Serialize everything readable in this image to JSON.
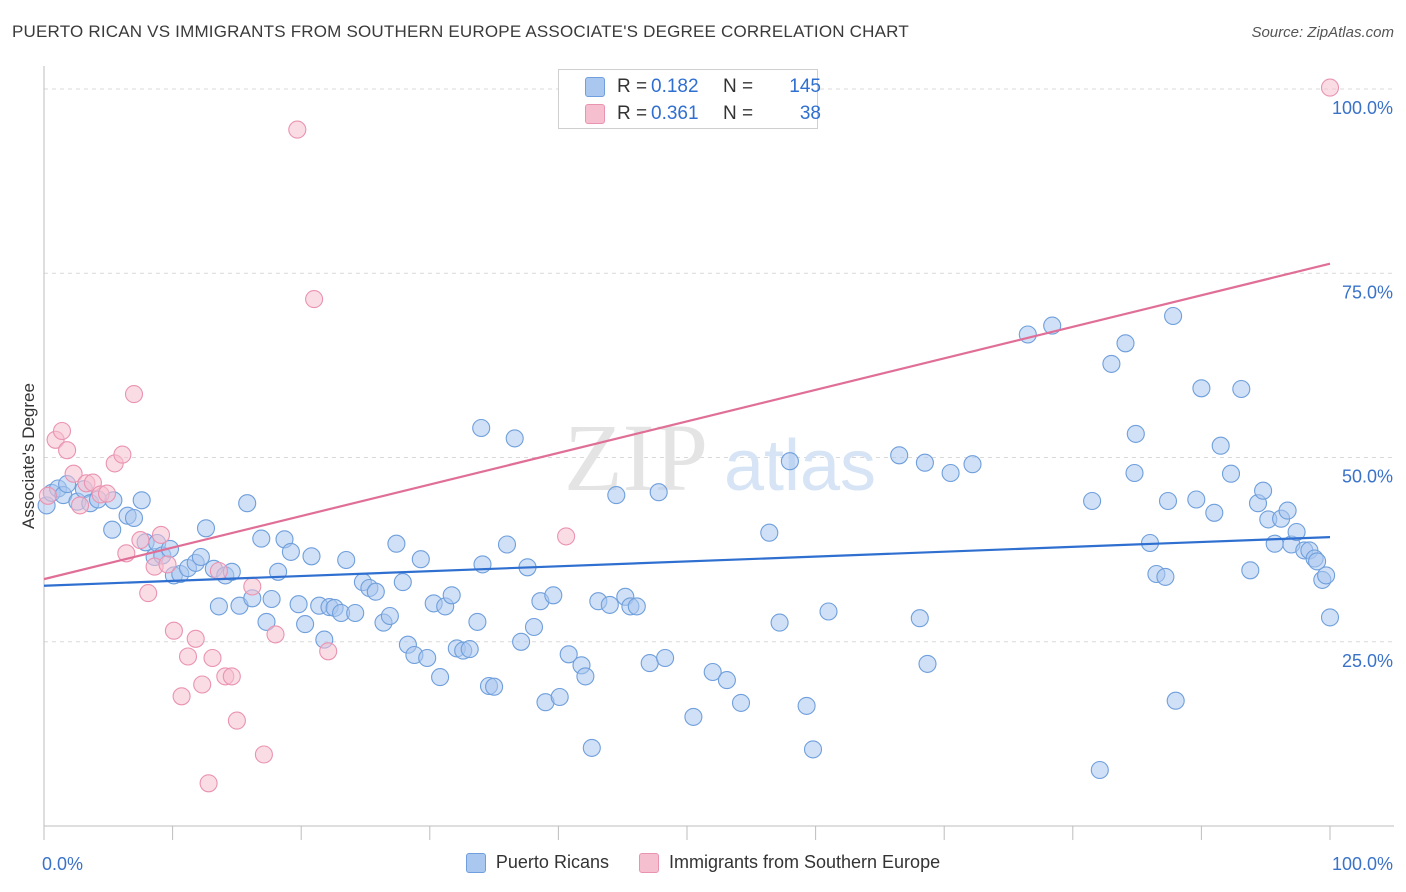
{
  "header": {
    "title": "PUERTO RICAN VS IMMIGRANTS FROM SOUTHERN EUROPE ASSOCIATE'S DEGREE CORRELATION CHART",
    "source": "Source: ZipAtlas.com"
  },
  "watermark": {
    "zip": "ZIP",
    "atlas": "atlas"
  },
  "colors": {
    "blue_fill": "#a9c7ef",
    "blue_stroke": "#6f9fdc",
    "blue_line": "#2f6fd0",
    "pink_fill": "#f6bfd0",
    "pink_stroke": "#ea93b1",
    "pink_line": "#e06f97",
    "tick_text": "#3a72c8",
    "grid": "#d9d9d9"
  },
  "stats": [
    {
      "r_label": "R =",
      "r_value": "0.182",
      "n_label": "N =",
      "n_value": "145"
    },
    {
      "r_label": "R =",
      "r_value": "0.361",
      "n_label": "N =",
      "n_value": "38"
    }
  ],
  "chart_data": {
    "type": "scatter",
    "title": "PUERTO RICAN VS IMMIGRANTS FROM SOUTHERN EUROPE ASSOCIATE'S DEGREE CORRELATION CHART",
    "xlabel": "",
    "ylabel": "Associate's Degree",
    "xlim": [
      0,
      100
    ],
    "ylim": [
      0,
      101.5
    ],
    "x_tick_labels": [
      {
        "value": 0,
        "label": "0.0%"
      },
      {
        "value": 100,
        "label": "100.0%"
      }
    ],
    "y_tick_labels": [
      {
        "value": 25,
        "label": "25.0%"
      },
      {
        "value": 50,
        "label": "50.0%"
      },
      {
        "value": 75,
        "label": "75.0%"
      },
      {
        "value": 100,
        "label": "100.0%"
      }
    ],
    "x_minor_ticks": [
      0,
      10,
      20,
      30,
      40,
      50,
      60,
      70,
      80,
      90,
      100
    ],
    "grid": true,
    "legend_position": "bottom",
    "series": [
      {
        "name": "Puerto Ricans",
        "color": "blue",
        "trend": {
          "x": [
            0,
            100
          ],
          "y": [
            32.6,
            39.2
          ]
        },
        "points": [
          [
            0.2,
            43.5
          ],
          [
            0.6,
            45.2
          ],
          [
            1.1,
            45.8
          ],
          [
            1.5,
            44.9
          ],
          [
            1.8,
            46.4
          ],
          [
            2.6,
            44.0
          ],
          [
            3.1,
            45.7
          ],
          [
            3.6,
            43.8
          ],
          [
            4.2,
            44.3
          ],
          [
            5.4,
            44.2
          ],
          [
            5.3,
            40.2
          ],
          [
            6.5,
            42.1
          ],
          [
            7.0,
            41.8
          ],
          [
            7.6,
            44.2
          ],
          [
            7.9,
            38.5
          ],
          [
            8.6,
            36.5
          ],
          [
            8.8,
            38.4
          ],
          [
            9.2,
            36.7
          ],
          [
            9.8,
            37.6
          ],
          [
            10.1,
            34.0
          ],
          [
            10.6,
            34.2
          ],
          [
            11.2,
            35.0
          ],
          [
            11.8,
            35.7
          ],
          [
            12.2,
            36.5
          ],
          [
            12.6,
            40.4
          ],
          [
            13.2,
            34.9
          ],
          [
            13.6,
            29.8
          ],
          [
            14.1,
            34.0
          ],
          [
            14.6,
            34.5
          ],
          [
            15.2,
            29.9
          ],
          [
            15.8,
            43.8
          ],
          [
            16.2,
            30.9
          ],
          [
            16.9,
            39.0
          ],
          [
            17.3,
            27.7
          ],
          [
            17.7,
            30.8
          ],
          [
            18.2,
            34.5
          ],
          [
            18.7,
            38.9
          ],
          [
            19.2,
            37.2
          ],
          [
            19.8,
            30.1
          ],
          [
            20.3,
            27.4
          ],
          [
            20.8,
            36.6
          ],
          [
            21.4,
            29.9
          ],
          [
            21.8,
            25.3
          ],
          [
            22.2,
            29.7
          ],
          [
            22.6,
            29.6
          ],
          [
            23.1,
            28.9
          ],
          [
            23.5,
            36.1
          ],
          [
            24.2,
            28.9
          ],
          [
            24.8,
            33.1
          ],
          [
            25.3,
            32.3
          ],
          [
            25.8,
            31.8
          ],
          [
            26.4,
            27.6
          ],
          [
            26.9,
            28.5
          ],
          [
            27.4,
            38.3
          ],
          [
            27.9,
            33.1
          ],
          [
            28.3,
            24.6
          ],
          [
            28.8,
            23.2
          ],
          [
            29.3,
            36.2
          ],
          [
            29.8,
            22.8
          ],
          [
            30.3,
            30.2
          ],
          [
            30.8,
            20.2
          ],
          [
            31.2,
            29.8
          ],
          [
            31.7,
            31.3
          ],
          [
            32.1,
            24.1
          ],
          [
            32.6,
            23.8
          ],
          [
            33.1,
            24.0
          ],
          [
            33.7,
            27.7
          ],
          [
            34.1,
            35.5
          ],
          [
            34.6,
            19.0
          ],
          [
            35.0,
            18.9
          ],
          [
            36.0,
            38.2
          ],
          [
            36.6,
            52.6
          ],
          [
            37.1,
            25.0
          ],
          [
            37.6,
            35.1
          ],
          [
            38.1,
            27.0
          ],
          [
            38.6,
            30.5
          ],
          [
            39.0,
            16.8
          ],
          [
            39.6,
            31.3
          ],
          [
            40.1,
            17.5
          ],
          [
            40.8,
            23.3
          ],
          [
            34.0,
            54.0
          ],
          [
            41.8,
            21.8
          ],
          [
            42.1,
            20.3
          ],
          [
            42.6,
            10.6
          ],
          [
            43.1,
            30.5
          ],
          [
            44.0,
            30.0
          ],
          [
            44.5,
            44.9
          ],
          [
            45.2,
            31.1
          ],
          [
            45.6,
            29.8
          ],
          [
            46.1,
            29.8
          ],
          [
            47.1,
            22.1
          ],
          [
            47.8,
            45.3
          ],
          [
            48.3,
            22.8
          ],
          [
            50.5,
            14.8
          ],
          [
            52.0,
            20.9
          ],
          [
            53.1,
            19.8
          ],
          [
            54.2,
            16.7
          ],
          [
            56.4,
            39.8
          ],
          [
            57.2,
            27.6
          ],
          [
            58.0,
            49.5
          ],
          [
            59.3,
            16.3
          ],
          [
            59.8,
            10.4
          ],
          [
            61.0,
            29.1
          ],
          [
            68.1,
            28.2
          ],
          [
            68.7,
            22.0
          ],
          [
            66.5,
            50.3
          ],
          [
            68.5,
            49.3
          ],
          [
            70.5,
            47.9
          ],
          [
            72.2,
            49.1
          ],
          [
            76.5,
            66.7
          ],
          [
            78.4,
            67.9
          ],
          [
            81.5,
            44.1
          ],
          [
            82.1,
            7.6
          ],
          [
            83.0,
            62.7
          ],
          [
            84.1,
            65.5
          ],
          [
            84.8,
            47.9
          ],
          [
            84.9,
            53.2
          ],
          [
            86.0,
            38.4
          ],
          [
            86.5,
            34.2
          ],
          [
            87.2,
            33.8
          ],
          [
            87.4,
            44.1
          ],
          [
            87.8,
            69.2
          ],
          [
            88.0,
            17.0
          ],
          [
            89.6,
            44.3
          ],
          [
            90.0,
            59.4
          ],
          [
            91.0,
            42.5
          ],
          [
            91.5,
            51.6
          ],
          [
            92.3,
            47.8
          ],
          [
            93.1,
            59.3
          ],
          [
            93.8,
            34.7
          ],
          [
            94.4,
            43.8
          ],
          [
            94.8,
            45.5
          ],
          [
            95.2,
            41.6
          ],
          [
            95.7,
            38.3
          ],
          [
            96.2,
            41.7
          ],
          [
            96.7,
            42.8
          ],
          [
            97.0,
            38.2
          ],
          [
            97.4,
            39.9
          ],
          [
            98.0,
            37.4
          ],
          [
            98.4,
            37.4
          ],
          [
            98.8,
            36.3
          ],
          [
            99.0,
            35.9
          ],
          [
            99.4,
            33.4
          ],
          [
            99.7,
            34.0
          ],
          [
            100.0,
            28.3
          ]
        ]
      },
      {
        "name": "Immigrants from Southern Europe",
        "color": "pink",
        "trend": {
          "x": [
            0,
            100
          ],
          "y": [
            33.5,
            76.3
          ]
        },
        "points": [
          [
            0.3,
            44.8
          ],
          [
            0.9,
            52.4
          ],
          [
            1.4,
            53.6
          ],
          [
            1.8,
            51.0
          ],
          [
            2.3,
            47.8
          ],
          [
            2.8,
            43.5
          ],
          [
            3.3,
            46.5
          ],
          [
            3.8,
            46.6
          ],
          [
            4.4,
            45.0
          ],
          [
            4.9,
            45.1
          ],
          [
            5.5,
            49.2
          ],
          [
            6.1,
            50.4
          ],
          [
            6.4,
            37.0
          ],
          [
            7.0,
            58.6
          ],
          [
            7.5,
            38.8
          ],
          [
            8.1,
            31.6
          ],
          [
            8.6,
            35.2
          ],
          [
            9.1,
            39.5
          ],
          [
            9.6,
            35.5
          ],
          [
            10.1,
            26.5
          ],
          [
            10.7,
            17.6
          ],
          [
            11.2,
            23.0
          ],
          [
            11.8,
            25.4
          ],
          [
            12.3,
            19.2
          ],
          [
            12.8,
            5.8
          ],
          [
            13.1,
            22.8
          ],
          [
            13.6,
            34.6
          ],
          [
            14.1,
            20.3
          ],
          [
            14.6,
            20.3
          ],
          [
            15.0,
            14.3
          ],
          [
            16.2,
            32.5
          ],
          [
            17.1,
            9.7
          ],
          [
            18.0,
            26.0
          ],
          [
            19.7,
            94.5
          ],
          [
            21.0,
            71.5
          ],
          [
            22.1,
            23.7
          ],
          [
            40.6,
            39.3
          ],
          [
            100.0,
            100.2
          ]
        ]
      }
    ]
  }
}
